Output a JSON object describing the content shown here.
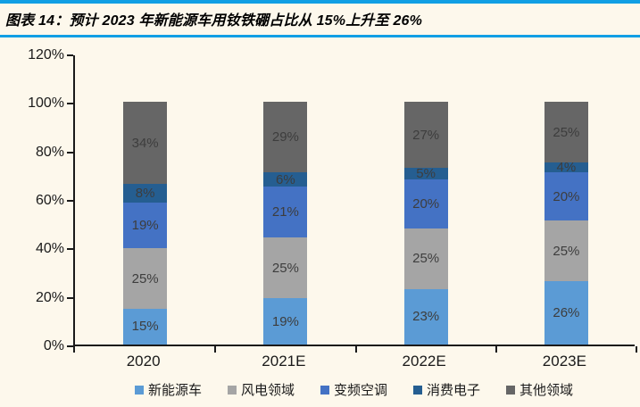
{
  "figure": {
    "title": "图表 14：预计 2023 年新能源车用钕铁硼占比从 15%上升至 26%",
    "accent_rule_color": "#119FE4",
    "background_color": "#FDF8EC"
  },
  "chart_data": {
    "type": "bar",
    "stacked": true,
    "percent_stack": true,
    "title": "图表 14：预计 2023 年新能源车用钕铁硼占比从 15%上升至 26%",
    "categories": [
      "2020",
      "2021E",
      "2022E",
      "2023E"
    ],
    "series": [
      {
        "name": "新能源车",
        "color": "#5B9BD5",
        "values": [
          15,
          19,
          23,
          26
        ]
      },
      {
        "name": "风电领域",
        "color": "#A5A5A5",
        "values": [
          25,
          25,
          25,
          25
        ]
      },
      {
        "name": "变频空调",
        "color": "#4472C4",
        "values": [
          19,
          21,
          20,
          20
        ]
      },
      {
        "name": "消费电子",
        "color": "#255E91",
        "values": [
          8,
          6,
          5,
          4
        ]
      },
      {
        "name": "其他领域",
        "color": "#666666",
        "values": [
          34,
          29,
          27,
          25
        ]
      }
    ],
    "data_label_suffix": "%",
    "xlabel": "",
    "ylabel": "",
    "ylim": [
      0,
      120
    ],
    "ytick_step": 20,
    "ytick_labels": [
      "0%",
      "20%",
      "40%",
      "60%",
      "80%",
      "100%",
      "120%"
    ],
    "grid": false,
    "legend_position": "bottom",
    "axis_color": "#1a1a1a",
    "data_label_color": "#3d3d3d"
  }
}
